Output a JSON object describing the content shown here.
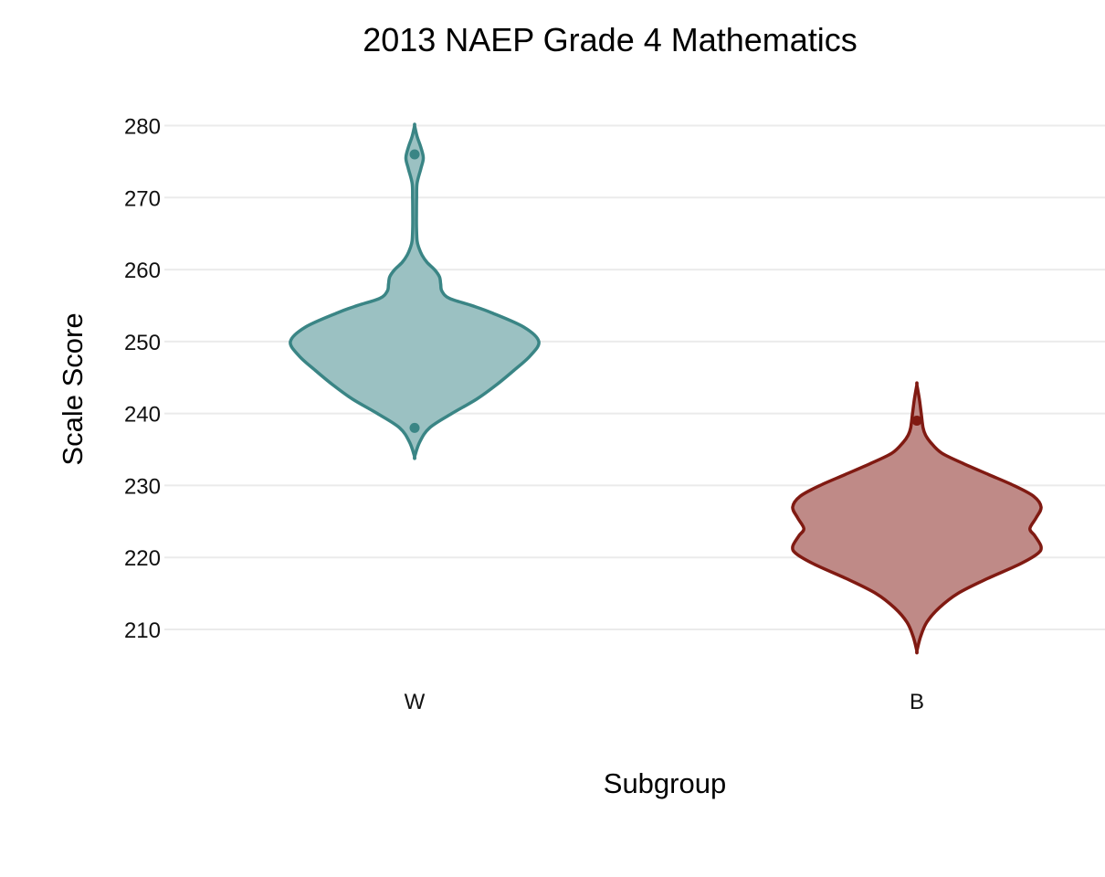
{
  "chart_data": {
    "type": "violin",
    "title": "2013 NAEP Grade 4 Mathematics",
    "xlabel": "Subgroup",
    "ylabel": "Scale Score",
    "ylim": [
      202,
      284
    ],
    "yticks": [
      210,
      220,
      230,
      240,
      250,
      260,
      270,
      280
    ],
    "grid": true,
    "categories": [
      "W",
      "B"
    ],
    "series": [
      {
        "category": "W",
        "color": "#3a8585",
        "fill": "#9bc1c2",
        "range": [
          234,
          280
        ],
        "outlier_points": [
          276,
          238
        ],
        "density": [
          [
            234,
            0.0
          ],
          [
            236,
            0.04
          ],
          [
            238,
            0.12
          ],
          [
            240,
            0.3
          ],
          [
            242,
            0.5
          ],
          [
            244,
            0.66
          ],
          [
            246,
            0.8
          ],
          [
            248,
            0.93
          ],
          [
            250,
            1.0
          ],
          [
            252,
            0.88
          ],
          [
            254,
            0.62
          ],
          [
            255,
            0.46
          ],
          [
            256,
            0.28
          ],
          [
            257,
            0.22
          ],
          [
            258,
            0.21
          ],
          [
            259,
            0.2
          ],
          [
            260,
            0.16
          ],
          [
            261,
            0.1
          ],
          [
            262,
            0.06
          ],
          [
            263,
            0.035
          ],
          [
            264,
            0.02
          ],
          [
            266,
            0.015
          ],
          [
            268,
            0.015
          ],
          [
            270,
            0.016
          ],
          [
            272,
            0.02
          ],
          [
            274,
            0.05
          ],
          [
            275.5,
            0.07
          ],
          [
            277,
            0.05
          ],
          [
            278.5,
            0.02
          ],
          [
            280,
            0.0
          ]
        ]
      },
      {
        "category": "B",
        "color": "#801a12",
        "fill": "#bf8a87",
        "range": [
          207,
          244
        ],
        "outlier_points": [
          239
        ],
        "density": [
          [
            207,
            0.0
          ],
          [
            209,
            0.03
          ],
          [
            211,
            0.08
          ],
          [
            213,
            0.18
          ],
          [
            215,
            0.33
          ],
          [
            217,
            0.56
          ],
          [
            219,
            0.82
          ],
          [
            220.5,
            0.97
          ],
          [
            221.5,
            1.0
          ],
          [
            223,
            0.95
          ],
          [
            224,
            0.91
          ],
          [
            225.5,
            0.96
          ],
          [
            227,
            1.0
          ],
          [
            228.5,
            0.94
          ],
          [
            230,
            0.78
          ],
          [
            231.5,
            0.58
          ],
          [
            233,
            0.38
          ],
          [
            234.5,
            0.2
          ],
          [
            236,
            0.11
          ],
          [
            237,
            0.07
          ],
          [
            238,
            0.05
          ],
          [
            240,
            0.035
          ],
          [
            242,
            0.02
          ],
          [
            244,
            0.0
          ]
        ]
      }
    ]
  }
}
